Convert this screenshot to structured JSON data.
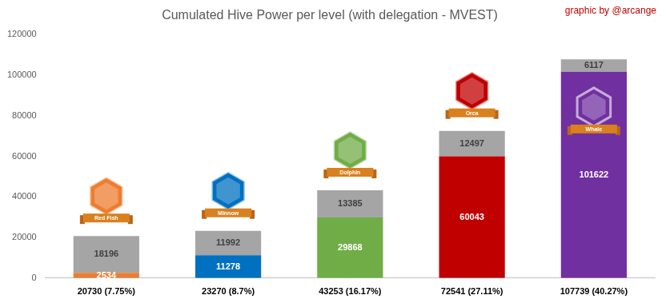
{
  "chart_data": {
    "type": "bar",
    "title": "Cumulated Hive Power per level (with delegation - MVEST)",
    "annotations": [
      "graphic by @arcange"
    ],
    "badges": [
      "Red Fish",
      "Minnow",
      "Dolphin",
      "Orca",
      "Whale"
    ],
    "categories": [
      "20730 (7.75%)",
      "23270 (8.7%)",
      "43253 (16.17%)",
      "72541 (27.11%)",
      "107739 (40.27%)"
    ],
    "series": [
      {
        "colors": [
          "#ed7d31",
          "#0070c0",
          "#70ad47",
          "#c00000",
          "#7030a0"
        ],
        "values": [
          2534,
          11278,
          29868,
          60043,
          101622
        ]
      },
      {
        "color": "#a5a5a5",
        "values": [
          18196,
          11992,
          13385,
          12497,
          6117
        ]
      }
    ],
    "ylim": [
      0,
      120000
    ],
    "yticks": [
      0,
      20000,
      40000,
      60000,
      80000,
      100000,
      120000
    ],
    "grid": false,
    "stacked": true,
    "data_labels": true
  }
}
